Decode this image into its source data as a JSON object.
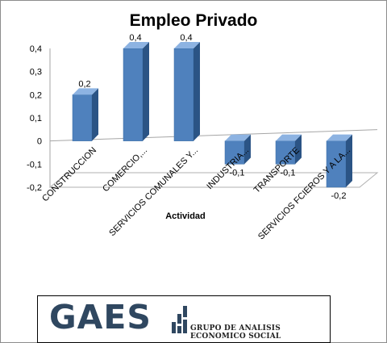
{
  "chart_data": {
    "type": "bar",
    "title": "Empleo Privado",
    "xlabel": "Actividad",
    "ylabel": "",
    "categories": [
      "CONSTRUCCION",
      "COMERCIO,...",
      "SERVICIOS COMUNALES Y...",
      "INDUSTRIA...",
      "TRANSPORTE",
      "SERVICIOS FCIEROS Y A LA..."
    ],
    "values": [
      0.2,
      0.4,
      0.4,
      -0.1,
      -0.1,
      -0.2
    ],
    "data_labels": [
      "0,2",
      "0,4",
      "0,4",
      "-0,1",
      "-0,1",
      "-0,2"
    ],
    "yticks": [
      0.4,
      0.3,
      0.2,
      0.1,
      0,
      -0.1,
      -0.2
    ],
    "ytick_labels": [
      "0,4",
      "0,3",
      "0,2",
      "0,1",
      "0",
      "-0,1",
      "-0,2"
    ],
    "ylim": [
      -0.2,
      0.4
    ],
    "grid": false,
    "bar_color": "#4f81bd",
    "bar_side_color": "#2b5485",
    "bar_top_color": "#8db3e2"
  },
  "logo": {
    "name": "GAES",
    "subtitle": "GRUPO DE ANALISIS ECONOMICO SOCIAL",
    "color": "#2f4760"
  }
}
